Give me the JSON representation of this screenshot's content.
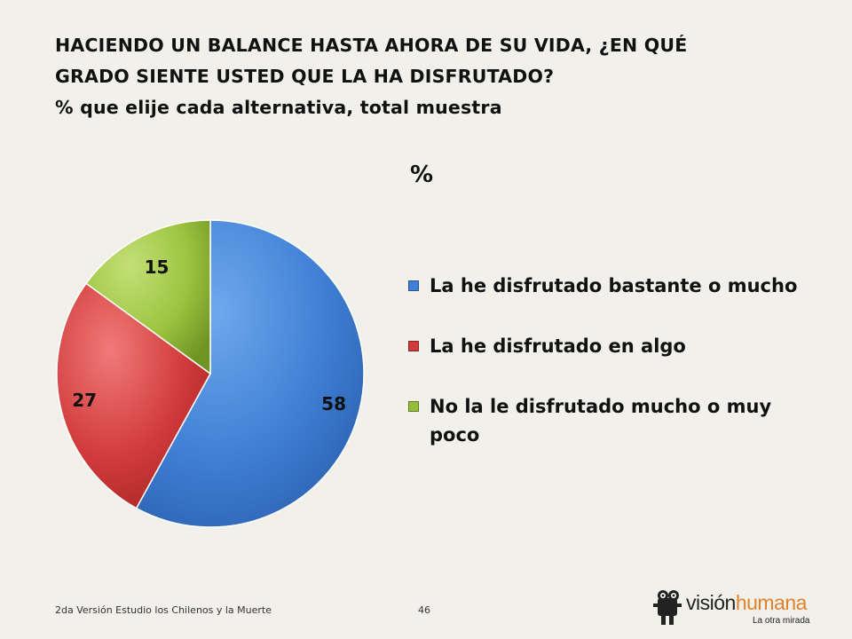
{
  "title": {
    "line1": "HACIENDO UN BALANCE HASTA AHORA DE SU VIDA, ¿EN QUÉ",
    "line2": "GRADO SIENTE USTED QUE LA HA DISFRUTADO?",
    "line3": "% que elije cada alternativa, total muestra"
  },
  "footer": {
    "study": "2da Versión Estudio los Chilenos y la Muerte",
    "page_number": "46"
  },
  "logo": {
    "part1": "visión",
    "part2": "humana",
    "tagline": "La otra mirada"
  },
  "chart_data": {
    "type": "pie",
    "unit_label": "%",
    "start": "12 o'clock, clockwise",
    "slices": [
      {
        "label": "La he disfrutado bastante o mucho",
        "value": 58,
        "color": "#3f7fd4"
      },
      {
        "label": "La he disfrutado en algo",
        "value": 27,
        "color": "#d23b3b"
      },
      {
        "label": "No la le disfrutado mucho o muy poco",
        "value": 15,
        "color": "#94be3a"
      }
    ],
    "data_labels": [
      "58",
      "27",
      "15"
    ],
    "legend_position": "right"
  }
}
